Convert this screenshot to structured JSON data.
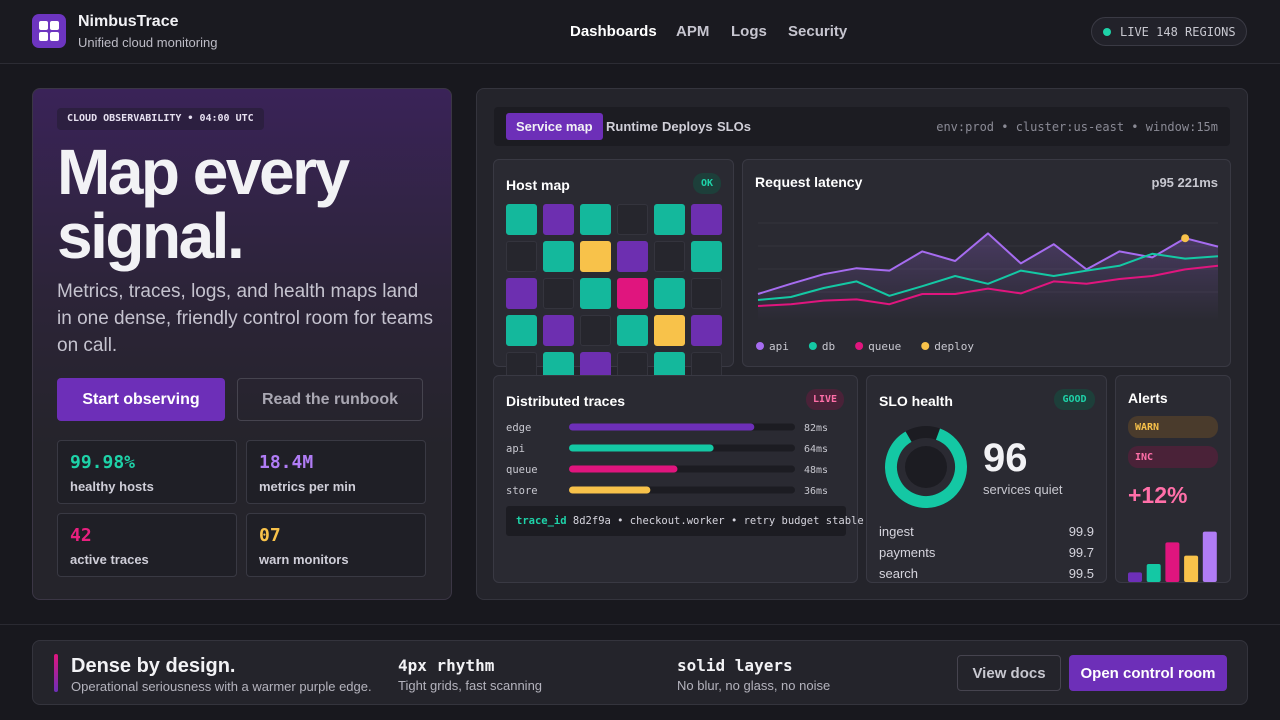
{
  "header": {
    "brand": "NimbusTrace",
    "tagline": "Unified cloud monitoring",
    "nav": [
      "Dashboards",
      "APM",
      "Logs",
      "Security"
    ],
    "live_badge": "LIVE 148 REGIONS"
  },
  "hero": {
    "eyebrow": "CLOUD OBSERVABILITY • 04:00 UTC",
    "title": "Map every signal.",
    "description": "Metrics, traces, logs, and health maps land in one dense, friendly control room for teams on call.",
    "primary_button": "Start observing",
    "secondary_button": "Read the runbook",
    "stats": [
      {
        "value": "99.98%",
        "label": "healthy hosts",
        "color": "#1ed2a8"
      },
      {
        "value": "18.4M",
        "label": "metrics per min",
        "color": "#b07cf5"
      },
      {
        "value": "42",
        "label": "active traces",
        "color": "#e8207f"
      },
      {
        "value": "07",
        "label": "warn monitors",
        "color": "#f8c24a"
      }
    ]
  },
  "dashboard": {
    "tabs": [
      "Service map",
      "Runtime",
      "Deploys",
      "SLOs"
    ],
    "context": "env:prod • cluster:us-east • window:15m",
    "host_map": {
      "title": "Host map",
      "badge": "OK",
      "cells": [
        "#14b89c",
        "#6d2fb0",
        "#14b89c",
        "#26262d",
        "#14b89c",
        "#6d2fb0",
        "#26262d",
        "#14b89c",
        "#f8c24a",
        "#6d2fb0",
        "#26262d",
        "#14b89c",
        "#6d2fb0",
        "#26262d",
        "#14b89c",
        "#e0157e",
        "#14b89c",
        "#26262d",
        "#14b89c",
        "#6d2fb0",
        "#26262d",
        "#14b89c",
        "#f8c24a",
        "#6d2fb0",
        "#26262d",
        "#14b89c",
        "#6d2fb0",
        "#26262d",
        "#14b89c",
        "#26262d"
      ]
    },
    "latency": {
      "type": "line",
      "title": "Request latency",
      "stat": "p95 221ms",
      "ylim": [
        0,
        100
      ],
      "series": [
        {
          "name": "api",
          "color": "#a66cf0",
          "values": [
            22.5,
            31,
            39,
            44,
            42,
            58,
            50,
            73,
            48,
            64,
            43,
            58,
            53,
            69,
            62
          ]
        },
        {
          "name": "db",
          "color": "#14c8a4",
          "values": [
            17.5,
            20,
            27.5,
            33,
            21,
            29,
            37.5,
            31,
            42,
            37.5,
            42,
            46,
            56,
            52,
            54
          ]
        },
        {
          "name": "queue",
          "color": "#e0157e",
          "values": [
            12.5,
            14,
            17,
            18,
            14,
            22.5,
            22.5,
            27,
            23,
            33,
            31,
            35,
            37.5,
            43,
            46
          ]
        },
        {
          "name": "deploy",
          "color": "#f8c24a",
          "values": [
            null,
            null,
            null,
            null,
            null,
            null,
            null,
            null,
            null,
            null,
            null,
            null,
            null,
            69,
            null
          ]
        }
      ]
    },
    "traces": {
      "title": "Distributed traces",
      "badge": "LIVE",
      "xlim": [
        0,
        100
      ],
      "rows": [
        {
          "name": "edge",
          "value": 82,
          "value_label": "82ms",
          "color": "#6d2fb8"
        },
        {
          "name": "api",
          "value": 64,
          "value_label": "64ms",
          "color": "#14c8a4"
        },
        {
          "name": "queue",
          "value": 48,
          "value_label": "48ms",
          "color": "#e0157e"
        },
        {
          "name": "store",
          "value": 36,
          "value_label": "36ms",
          "color": "#f8c24a"
        }
      ],
      "trace_key": "trace_id",
      "trace_text": "8d2f9a • checkout.worker • retry budget stable"
    },
    "slo": {
      "title": "SLO health",
      "badge": "GOOD",
      "ring": 86,
      "value": 96,
      "caption": "services quiet",
      "rows": [
        {
          "name": "ingest",
          "value": 99.9
        },
        {
          "name": "payments",
          "value": 99.7
        },
        {
          "name": "search",
          "value": 99.5
        }
      ]
    },
    "alerts": {
      "title": "Alerts",
      "tags": [
        "WARN",
        "INC"
      ],
      "delta": "+12%",
      "ylim": [
        0,
        50
      ],
      "values": [
        8,
        15,
        33,
        22,
        42
      ],
      "colors": [
        "#6d2fb8",
        "#14c8a4",
        "#e0157e",
        "#f8c24a",
        "#b07cf5"
      ]
    }
  },
  "footer": {
    "title": "Dense by design.",
    "subtitle": "Operational seriousness with a warmer purple edge.",
    "items": [
      {
        "title": "4px rhythm",
        "text": "Tight grids, fast scanning"
      },
      {
        "title": "solid layers",
        "text": "No blur, no glass, no noise"
      }
    ],
    "secondary_button": "View docs",
    "primary_button": "Open control room"
  }
}
